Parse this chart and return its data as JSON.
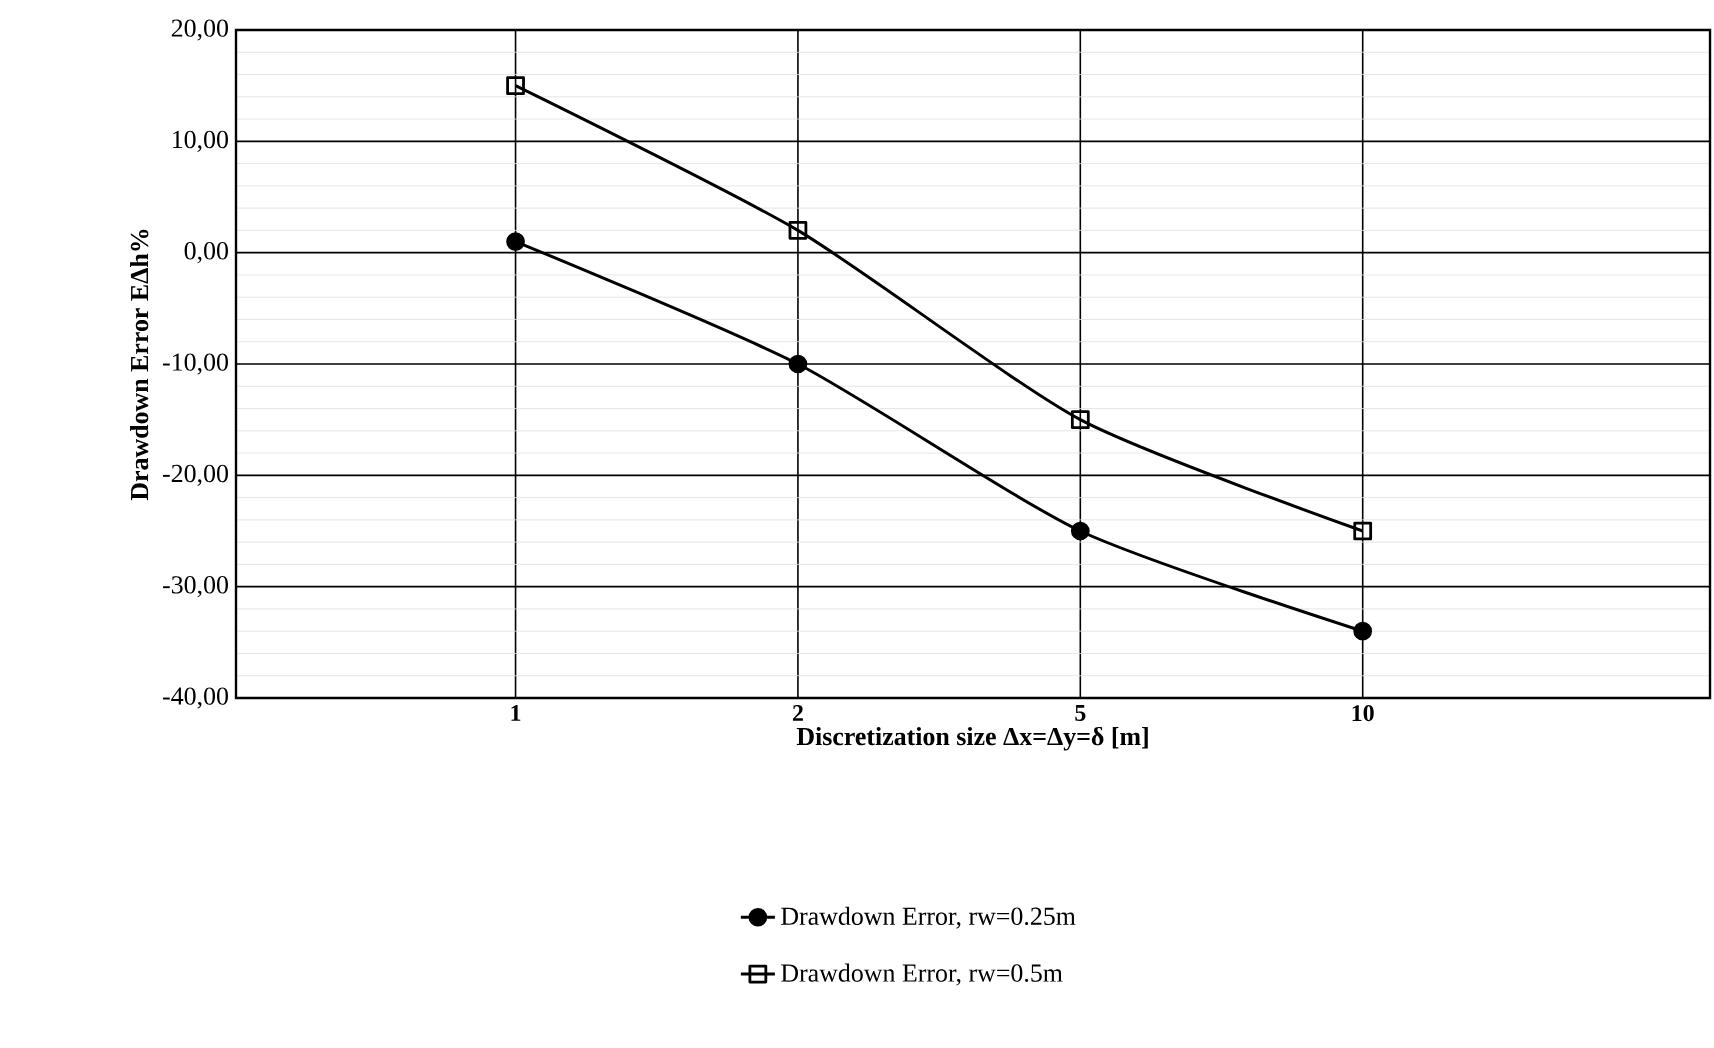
{
  "chart_data": {
    "type": "line",
    "xlabel": "Discretization size Δx=Δy=δ [m]",
    "ylabel": "Drawdown Error EΔh%",
    "categories": [
      "1",
      "2",
      "5",
      "10"
    ],
    "series": [
      {
        "name": "Drawdown Error, rw=0.25m",
        "color": "#000000",
        "marker": "circle",
        "values": [
          1,
          -10,
          -25,
          -34
        ]
      },
      {
        "name": "Drawdown Error, rw=0.5m",
        "color": "#000000",
        "marker": "square",
        "values": [
          15,
          2,
          -15,
          -25
        ]
      }
    ],
    "ylim": [
      -40,
      20
    ],
    "yticks": [
      {
        "value": -40,
        "label": "-40,00"
      },
      {
        "value": -30,
        "label": "-30,00"
      },
      {
        "value": -20,
        "label": "-20,00"
      },
      {
        "value": -10,
        "label": "-10,00"
      },
      {
        "value": 0,
        "label": "0,00"
      },
      {
        "value": 10,
        "label": "10,00"
      },
      {
        "value": 20,
        "label": "20,00"
      }
    ],
    "grid": true,
    "legend": "bottom"
  }
}
